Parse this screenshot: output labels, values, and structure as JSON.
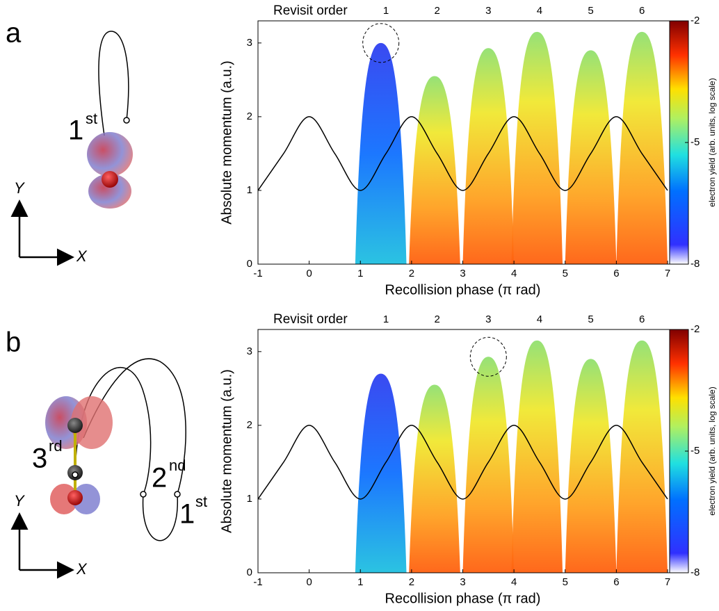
{
  "figure": {
    "panel_labels": [
      "a",
      "b"
    ],
    "axis_names": {
      "x": "X",
      "y": "Y"
    },
    "orders_a": [
      {
        "number": "1",
        "suffix": "st"
      }
    ],
    "orders_b": [
      {
        "number": "3",
        "suffix": "rd"
      },
      {
        "number": "2",
        "suffix": "nd"
      },
      {
        "number": "1",
        "suffix": "st"
      }
    ]
  },
  "chart_data": [
    {
      "type": "line",
      "color": "#000000",
      "x": [
        -1,
        -0.5,
        0,
        0.5,
        1,
        1.5,
        2,
        2.5,
        3,
        3.5,
        4,
        4.5,
        5,
        5.5,
        6,
        6.5,
        7
      ],
      "values": [
        1,
        1.5,
        2,
        1.5,
        1,
        1.5,
        2,
        1.5,
        1,
        1.5,
        2,
        1.5,
        1,
        1.5,
        2,
        1.5,
        1
      ],
      "peaks_x": [
        1.4,
        2.45,
        3.5,
        4.45,
        5.5,
        6.5
      ],
      "peaks_y": [
        3.0,
        2.55,
        2.93,
        3.15,
        2.9,
        3.15
      ],
      "highlight": [
        1.4,
        3.0
      ],
      "xlim": [
        -1,
        7
      ],
      "xticks": [
        -1,
        0,
        1,
        2,
        3,
        4,
        5,
        6,
        7
      ],
      "ylim": [
        0,
        3.3
      ],
      "yticks": [
        0,
        1,
        2,
        3
      ],
      "xlabel": "Recollision phase (π rad)",
      "ylabel": "Absolute momentum (a.u.)",
      "x2label": "Revisit order",
      "x2ticks": [
        {
          "value": 1.5,
          "label": "1"
        },
        {
          "value": 2.5,
          "label": "2"
        },
        {
          "value": 3.5,
          "label": "3"
        },
        {
          "value": 4.5,
          "label": "4"
        },
        {
          "value": 5.5,
          "label": "5"
        },
        {
          "value": 6.5,
          "label": "6"
        }
      ],
      "colorbar": {
        "clim": [
          -8,
          -2
        ],
        "ticks": [
          -2,
          -5,
          -8
        ],
        "label": "electron yield (arb. units, log scale)"
      }
    },
    {
      "type": "line",
      "color": "#000000",
      "x": [
        -1,
        -0.5,
        0,
        0.5,
        1,
        1.5,
        2,
        2.5,
        3,
        3.5,
        4,
        4.5,
        5,
        5.5,
        6,
        6.5,
        7
      ],
      "values": [
        1,
        1.5,
        2,
        1.5,
        1,
        1.5,
        2,
        1.5,
        1,
        1.5,
        2,
        1.5,
        1,
        1.5,
        2,
        1.5,
        1
      ],
      "peaks_x": [
        1.4,
        2.45,
        3.5,
        4.45,
        5.5,
        6.5
      ],
      "peaks_y": [
        2.7,
        2.55,
        2.93,
        3.15,
        2.9,
        3.15
      ],
      "highlight": [
        3.5,
        2.93
      ],
      "xlim": [
        -1,
        7
      ],
      "xticks": [
        -1,
        0,
        1,
        2,
        3,
        4,
        5,
        6,
        7
      ],
      "ylim": [
        0,
        3.3
      ],
      "yticks": [
        0,
        1,
        2,
        3
      ],
      "xlabel": "Recollision phase (π rad)",
      "ylabel": "Absolute momentum (a.u.)",
      "x2label": "Revisit order",
      "x2ticks": [
        {
          "value": 1.5,
          "label": "1"
        },
        {
          "value": 2.5,
          "label": "2"
        },
        {
          "value": 3.5,
          "label": "3"
        },
        {
          "value": 4.5,
          "label": "4"
        },
        {
          "value": 5.5,
          "label": "5"
        },
        {
          "value": 6.5,
          "label": "6"
        }
      ],
      "colorbar": {
        "clim": [
          -8,
          -2
        ],
        "ticks": [
          -2,
          -5,
          -8
        ],
        "label": "electron yield (arb. units, log scale)"
      }
    }
  ]
}
